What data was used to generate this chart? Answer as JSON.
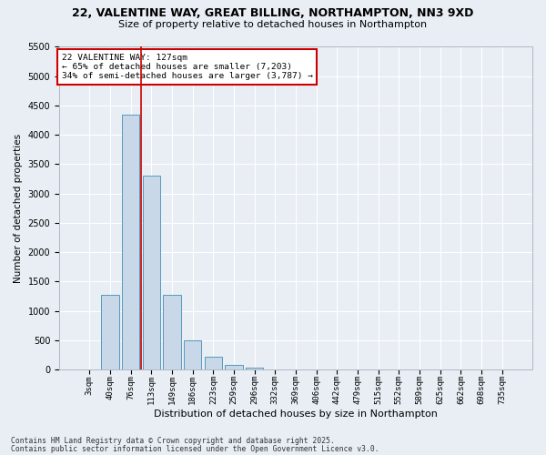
{
  "title_line1": "22, VALENTINE WAY, GREAT BILLING, NORTHAMPTON, NN3 9XD",
  "title_line2": "Size of property relative to detached houses in Northampton",
  "xlabel": "Distribution of detached houses by size in Northampton",
  "ylabel": "Number of detached properties",
  "bar_labels": [
    "3sqm",
    "40sqm",
    "76sqm",
    "113sqm",
    "149sqm",
    "186sqm",
    "223sqm",
    "259sqm",
    "296sqm",
    "332sqm",
    "369sqm",
    "406sqm",
    "442sqm",
    "479sqm",
    "515sqm",
    "552sqm",
    "589sqm",
    "625sqm",
    "662sqm",
    "698sqm",
    "735sqm"
  ],
  "bar_values": [
    0,
    1270,
    4350,
    3300,
    1270,
    500,
    210,
    75,
    30,
    0,
    0,
    0,
    0,
    0,
    0,
    0,
    0,
    0,
    0,
    0,
    0
  ],
  "bar_color": "#c8d8e8",
  "bar_edge_color": "#5599bb",
  "vline_x": 2.5,
  "vline_color": "#cc0000",
  "annotation_text": "22 VALENTINE WAY: 127sqm\n← 65% of detached houses are smaller (7,203)\n34% of semi-detached houses are larger (3,787) →",
  "annotation_box_color": "#ffffff",
  "annotation_box_edge": "#cc0000",
  "ylim": [
    0,
    5500
  ],
  "yticks": [
    0,
    500,
    1000,
    1500,
    2000,
    2500,
    3000,
    3500,
    4000,
    4500,
    5000,
    5500
  ],
  "footnote1": "Contains HM Land Registry data © Crown copyright and database right 2025.",
  "footnote2": "Contains public sector information licensed under the Open Government Licence v3.0.",
  "bg_color": "#e8eef4",
  "grid_color": "#ffffff"
}
